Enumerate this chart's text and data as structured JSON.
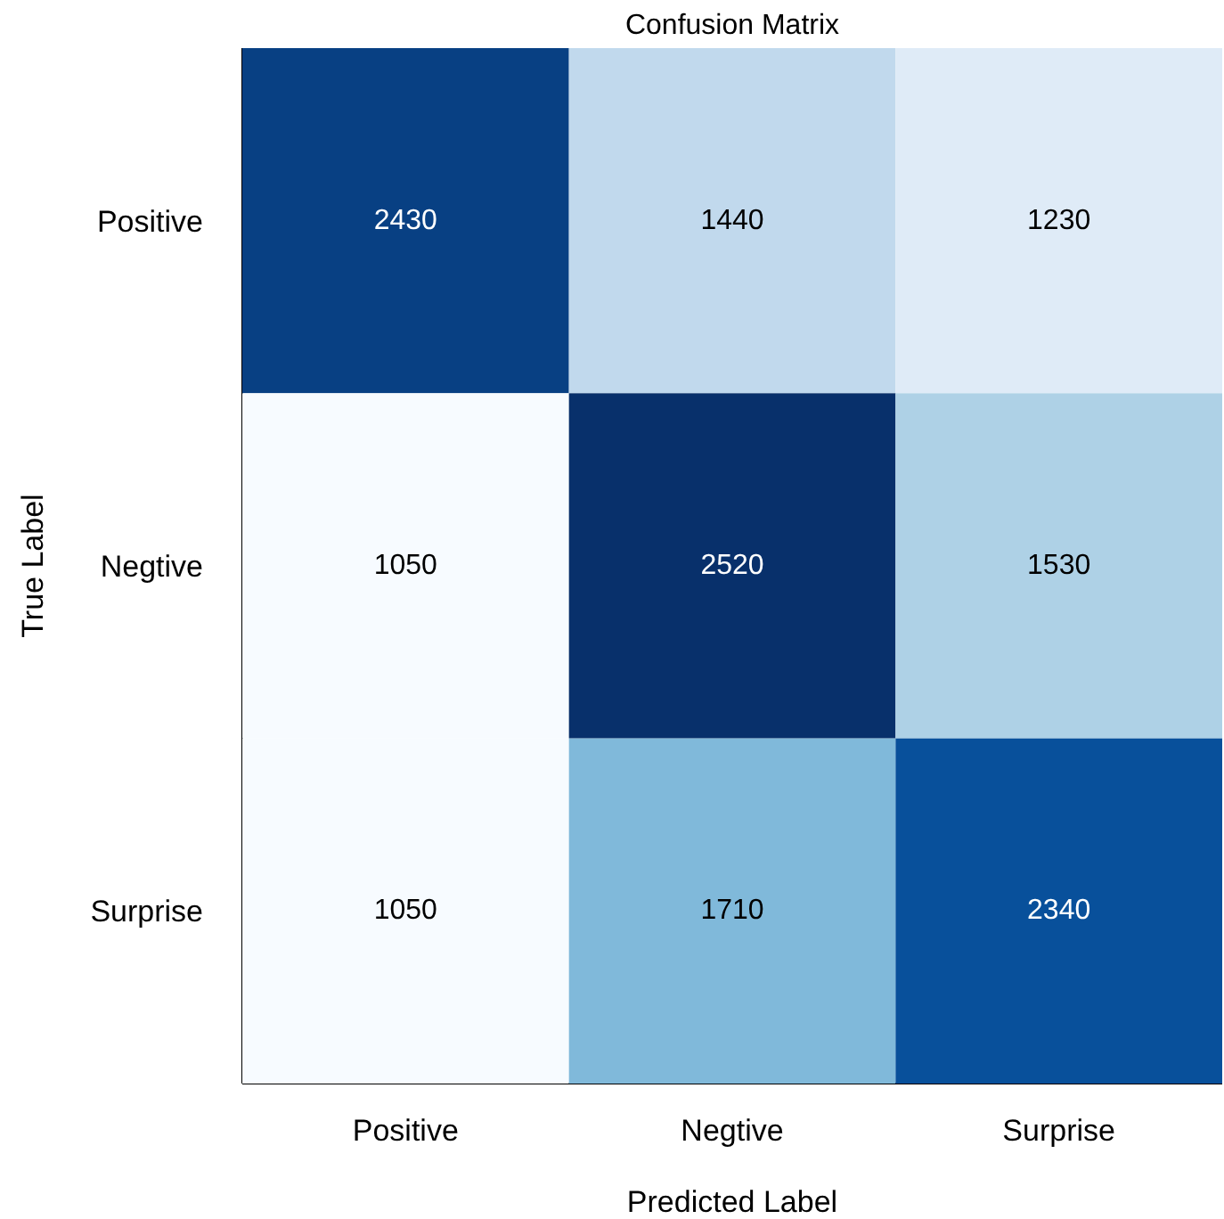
{
  "chart_data": {
    "type": "heatmap",
    "title": "Confusion Matrix",
    "xlabel": "Predicted Label",
    "ylabel": "True Label",
    "categories": [
      "Positive",
      "Negtive",
      "Surprise"
    ],
    "y_categories": [
      "Positive",
      "Negtive",
      "Surprise"
    ],
    "cells": [
      [
        2430,
        1440,
        1230
      ],
      [
        1050,
        2520,
        1530
      ],
      [
        1050,
        1710,
        2340
      ]
    ],
    "data_labels": true
  }
}
